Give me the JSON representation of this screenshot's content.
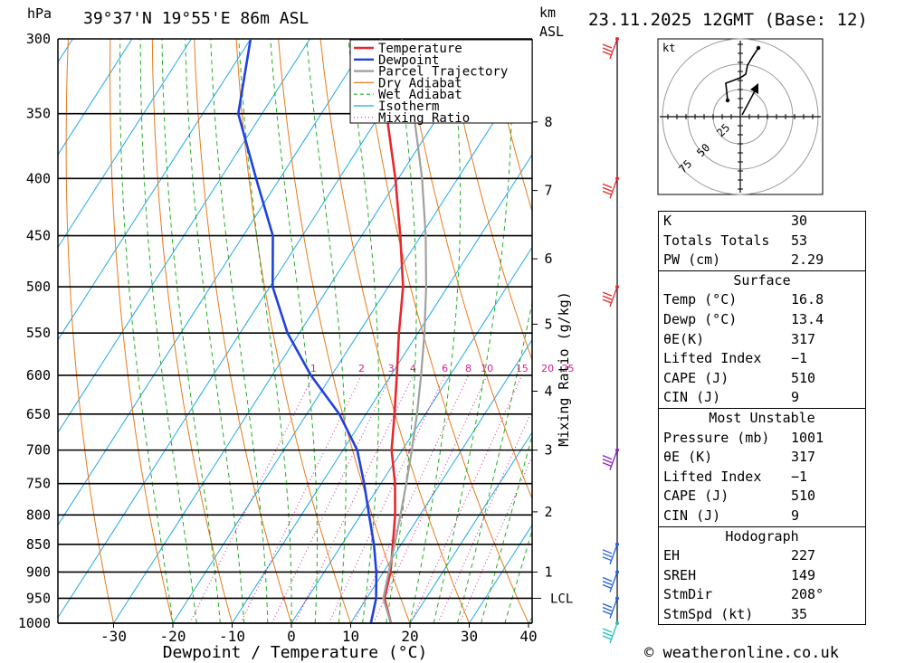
{
  "header": {
    "pressure_unit": "hPa",
    "location": "39°37'N 19°55'E 86m ASL",
    "km_label": "km",
    "asl_label": "ASL",
    "datetime": "23.11.2025 12GMT (Base: 12)"
  },
  "chart_data": {
    "type": "skew-t",
    "title": "39°37'N 19°55'E 86m ASL",
    "xlabel": "Dewpoint / Temperature (°C)",
    "ylabel": "hPa",
    "right_label": "Mixing Ratio (g/kg)",
    "xlim": [
      -40,
      40
    ],
    "ylim": [
      1000,
      300
    ],
    "x_ticks": [
      -30,
      -20,
      -10,
      0,
      10,
      20,
      30,
      40
    ],
    "pressure_levels": [
      300,
      350,
      400,
      450,
      500,
      550,
      600,
      650,
      700,
      750,
      800,
      850,
      900,
      950,
      1000
    ],
    "km_ticks": [
      {
        "km": 1,
        "p": 900
      },
      {
        "km": 2,
        "p": 795
      },
      {
        "km": 3,
        "p": 700
      },
      {
        "km": 4,
        "p": 620
      },
      {
        "km": 5,
        "p": 540
      },
      {
        "km": 6,
        "p": 472
      },
      {
        "km": 7,
        "p": 410
      },
      {
        "km": 8,
        "p": 356
      }
    ],
    "lcl": {
      "label": "LCL",
      "p": 950
    },
    "mixing_ratio_labels": [
      "1",
      "2",
      "3",
      "4",
      "6",
      "8",
      "10",
      "15",
      "20",
      "25"
    ],
    "mixing_ratio_values": [
      1,
      2,
      3,
      4,
      6,
      8,
      10,
      15,
      20,
      25
    ],
    "legend": [
      "Temperature",
      "Dewpoint",
      "Parcel Trajectory",
      "Dry Adiabat",
      "Wet Adiabat",
      "Isotherm",
      "Mixing Ratio"
    ],
    "series": [
      {
        "name": "Temperature",
        "color": "#e8282d",
        "points": [
          {
            "p": 1000,
            "v": 16.8
          },
          {
            "p": 950,
            "v": 13.0
          },
          {
            "p": 900,
            "v": 11.2
          },
          {
            "p": 850,
            "v": 8.6
          },
          {
            "p": 800,
            "v": 5.8
          },
          {
            "p": 750,
            "v": 2.4
          },
          {
            "p": 700,
            "v": -1.8
          },
          {
            "p": 650,
            "v": -5.2
          },
          {
            "p": 600,
            "v": -9.0
          },
          {
            "p": 550,
            "v": -13.2
          },
          {
            "p": 500,
            "v": -17.5
          },
          {
            "p": 450,
            "v": -23.5
          },
          {
            "p": 400,
            "v": -30.5
          },
          {
            "p": 350,
            "v": -39.0
          },
          {
            "p": 300,
            "v": -48.0
          }
        ]
      },
      {
        "name": "Dewpoint",
        "color": "#2040e0",
        "points": [
          {
            "p": 1000,
            "v": 13.4
          },
          {
            "p": 950,
            "v": 11.6
          },
          {
            "p": 900,
            "v": 8.8
          },
          {
            "p": 850,
            "v": 5.4
          },
          {
            "p": 800,
            "v": 1.4
          },
          {
            "p": 750,
            "v": -2.8
          },
          {
            "p": 700,
            "v": -7.6
          },
          {
            "p": 650,
            "v": -14.5
          },
          {
            "p": 600,
            "v": -23.5
          },
          {
            "p": 550,
            "v": -32.0
          },
          {
            "p": 500,
            "v": -39.5
          },
          {
            "p": 450,
            "v": -45.0
          },
          {
            "p": 400,
            "v": -54.0
          },
          {
            "p": 350,
            "v": -64.0
          },
          {
            "p": 300,
            "v": -70.0
          }
        ]
      },
      {
        "name": "Parcel Trajectory",
        "color": "#a0a0a0",
        "points": [
          {
            "p": 1000,
            "v": 16.8
          },
          {
            "p": 950,
            "v": 12.8
          },
          {
            "p": 900,
            "v": 10.9
          },
          {
            "p": 850,
            "v": 8.9
          },
          {
            "p": 800,
            "v": 6.7
          },
          {
            "p": 750,
            "v": 4.3
          },
          {
            "p": 700,
            "v": 1.6
          },
          {
            "p": 650,
            "v": -1.4
          },
          {
            "p": 600,
            "v": -4.9
          },
          {
            "p": 550,
            "v": -8.9
          },
          {
            "p": 500,
            "v": -13.6
          },
          {
            "p": 450,
            "v": -19.2
          },
          {
            "p": 400,
            "v": -26.0
          },
          {
            "p": 350,
            "v": -34.4
          },
          {
            "p": 300,
            "v": -44.5
          }
        ]
      }
    ]
  },
  "hodograph": {
    "unit_label": "kt",
    "rings": [
      "25",
      "50",
      "75"
    ]
  },
  "indices": {
    "rows": [
      {
        "label": "K",
        "value": "30"
      },
      {
        "label": "Totals Totals",
        "value": "53"
      },
      {
        "label": "PW (cm)",
        "value": "2.29"
      }
    ],
    "surface": {
      "title": "Surface",
      "rows": [
        {
          "label": "Temp (°C)",
          "value": "16.8"
        },
        {
          "label": "Dewp (°C)",
          "value": "13.4"
        },
        {
          "label": "θE(K)",
          "value": "317"
        },
        {
          "label": "Lifted Index",
          "value": "−1"
        },
        {
          "label": "CAPE (J)",
          "value": "510"
        },
        {
          "label": "CIN (J)",
          "value": "9"
        }
      ]
    },
    "most_unstable": {
      "title": "Most Unstable",
      "rows": [
        {
          "label": "Pressure (mb)",
          "value": "1001"
        },
        {
          "label": "θE (K)",
          "value": "317"
        },
        {
          "label": "Lifted Index",
          "value": "−1"
        },
        {
          "label": "CAPE (J)",
          "value": "510"
        },
        {
          "label": "CIN (J)",
          "value": "9"
        }
      ]
    },
    "hodograph_indices": {
      "title": "Hodograph",
      "rows": [
        {
          "label": "EH",
          "value": "227"
        },
        {
          "label": "SREH",
          "value": "149"
        },
        {
          "label": "StmDir",
          "value": "208°"
        },
        {
          "label": "StmSpd (kt)",
          "value": "35"
        }
      ]
    }
  },
  "footer": {
    "copyright": "© weatheronline.co.uk"
  },
  "colors": {
    "temperature": "#e8282d",
    "dewpoint": "#2040e0",
    "parcel": "#a0a0a0",
    "dry_adiabat": "#e87a1a",
    "wet_adiabat": "#20b020",
    "isotherm": "#20a8e8",
    "mixing_ratio": "#d0208f",
    "wind_upper": "#e8282d",
    "wind_mid": "#9020c0",
    "wind_low": "#2060e0",
    "wind_surface": "#20c0c0"
  }
}
